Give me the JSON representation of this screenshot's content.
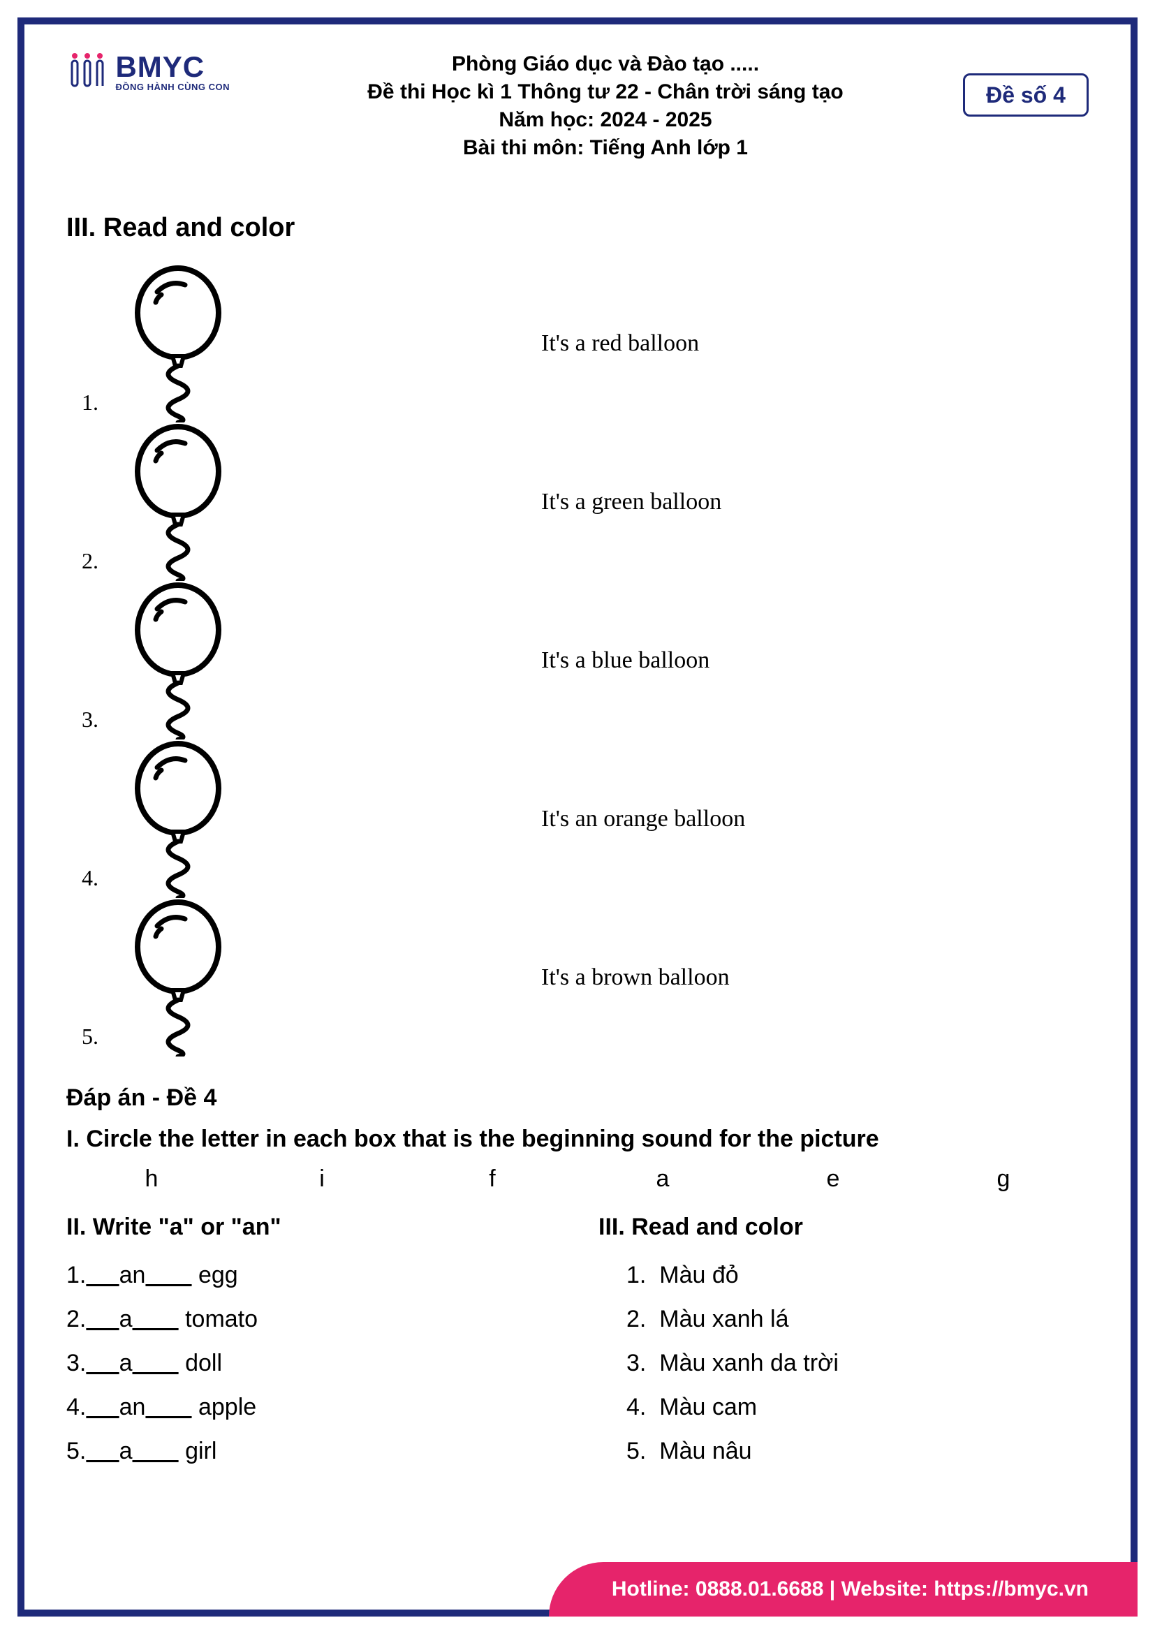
{
  "logo": {
    "name": "BMYC",
    "sub": "ĐỒNG HÀNH CÙNG CON"
  },
  "header": {
    "line1": "Phòng Giáo dục và Đào tạo .....",
    "line2": "Đề thi Học kì 1 Thông tư 22 - Chân trời sáng tạo",
    "line3": "Năm học: 2024 - 2025",
    "line4_prefix": "Bài thi môn: ",
    "line4_bold": "Tiếng Anh lớp 1"
  },
  "badge": "Đề số 4",
  "section3": {
    "title": "III. Read and color",
    "items": [
      {
        "num": "1.",
        "label": "It's a red balloon"
      },
      {
        "num": "2.",
        "label": "It's a green balloon"
      },
      {
        "num": "3.",
        "label": "It's a blue balloon"
      },
      {
        "num": "4.",
        "label": "It's an orange balloon"
      },
      {
        "num": "5.",
        "label": "It's a brown balloon"
      }
    ],
    "balloon_style": {
      "stroke": "#000000",
      "stroke_width": 6,
      "fill": "#ffffff"
    }
  },
  "answers": {
    "title": "Đáp án - Đề 4",
    "q1": {
      "title": "I. Circle the letter in each box that is the beginning sound for the picture",
      "letters": [
        "h",
        "i",
        "f",
        "a",
        "e",
        "g"
      ]
    },
    "q2": {
      "title": "II. Write \"a\" or \"an\"",
      "items": [
        {
          "n": "1.",
          "ans": "an",
          "word": "egg"
        },
        {
          "n": "2.",
          "ans": "a",
          "word": "tomato"
        },
        {
          "n": "3.",
          "ans": "a",
          "word": "doll"
        },
        {
          "n": "4.",
          "ans": "an",
          "word": "apple"
        },
        {
          "n": "5.",
          "ans": "a",
          "word": "girl"
        }
      ]
    },
    "q3": {
      "title": "III.  Read and color",
      "items": [
        {
          "n": "1.",
          "text": "Màu đỏ"
        },
        {
          "n": "2.",
          "text": "Màu xanh lá"
        },
        {
          "n": "3.",
          "text": "Màu xanh da trời"
        },
        {
          "n": "4.",
          "text": "Màu cam"
        },
        {
          "n": "5.",
          "text": "Màu nâu"
        }
      ]
    }
  },
  "footer": {
    "hotline_label": "Hotline:",
    "hotline": "0888.01.6688",
    "sep": "  |  ",
    "website_label": "Website:",
    "website": "https://bmyc.vn"
  },
  "colors": {
    "frame": "#1e2a7a",
    "footer_bg": "#e6246b"
  }
}
